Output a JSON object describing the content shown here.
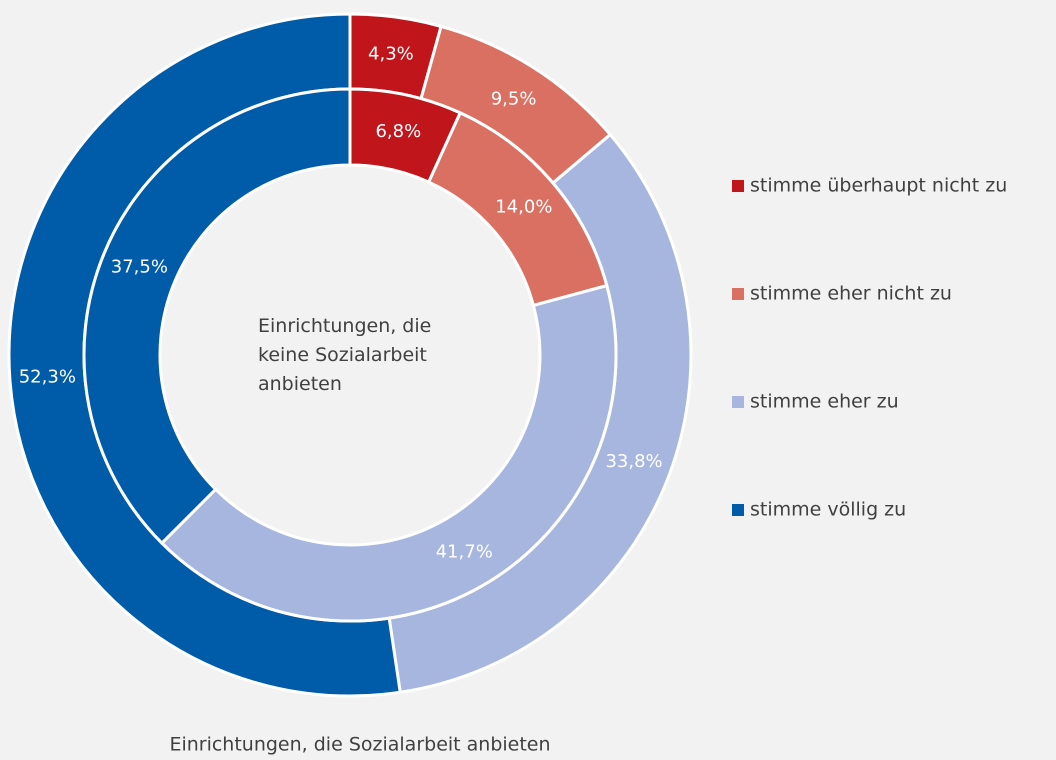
{
  "chart_data": {
    "type": "doughnut",
    "categories": [
      "stimme überhaupt nicht zu",
      "stimme eher nicht zu",
      "stimme eher zu",
      "stimme völlig zu"
    ],
    "colors": [
      "#c0161b",
      "#d97062",
      "#a6b6df",
      "#005ca9"
    ],
    "series": [
      {
        "name": "Einrichtungen, die Sozialarbeit anbieten",
        "values": [
          4.3,
          9.5,
          33.8,
          52.3
        ],
        "value_labels": [
          "4,3%",
          "9,5%",
          "33,8%",
          "52,3%"
        ]
      },
      {
        "name": "Einrichtungen, die keine Sozialarbeit anbieten",
        "values": [
          6.8,
          14.0,
          41.7,
          37.5
        ],
        "value_labels": [
          "6,8%",
          "14,0%",
          "41,7%",
          "37,5%"
        ]
      }
    ]
  }
}
